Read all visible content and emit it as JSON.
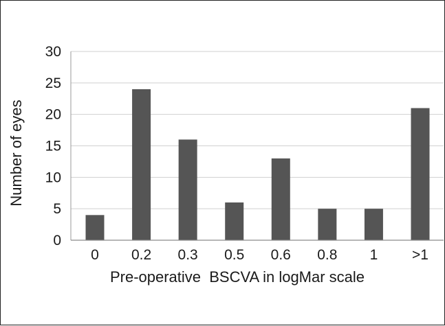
{
  "chart_data": {
    "type": "bar",
    "title": "",
    "xlabel": "Pre-operative  BSCVA in logMar scale",
    "ylabel": "Number of eyes",
    "categories": [
      "0",
      "0.2",
      "0.3",
      "0.5",
      "0.6",
      "0.8",
      "1",
      ">1"
    ],
    "values": [
      4,
      24,
      16,
      6,
      13,
      5,
      5,
      21
    ],
    "ylim": [
      0,
      30
    ],
    "yticks": [
      "0",
      "5",
      "10",
      "15",
      "20",
      "25",
      "30"
    ],
    "grid": true,
    "legend": "none",
    "bar_color": "#555555",
    "grid_color": "#cfcfcf"
  }
}
